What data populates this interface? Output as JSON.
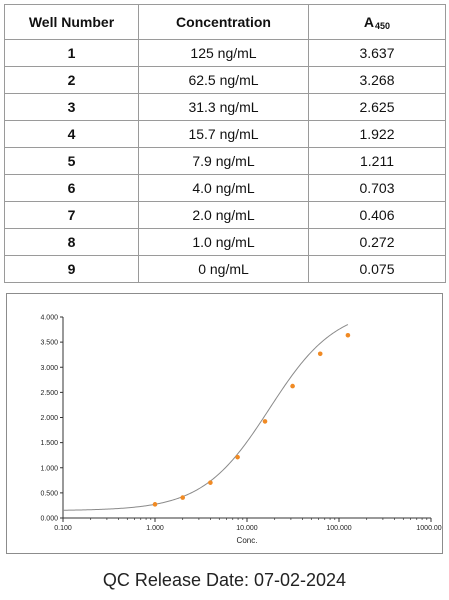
{
  "table": {
    "headers": [
      "Well Number",
      "Concentration",
      "A",
      "450"
    ],
    "rows": [
      {
        "well": "1",
        "conc": "125 ng/mL",
        "abs": "3.637"
      },
      {
        "well": "2",
        "conc": "62.5 ng/mL",
        "abs": "3.268"
      },
      {
        "well": "3",
        "conc": "31.3 ng/mL",
        "abs": "2.625"
      },
      {
        "well": "4",
        "conc": "15.7 ng/mL",
        "abs": "1.922"
      },
      {
        "well": "5",
        "conc": "7.9 ng/mL",
        "abs": "1.211"
      },
      {
        "well": "6",
        "conc": "4.0 ng/mL",
        "abs": "0.703"
      },
      {
        "well": "7",
        "conc": "2.0 ng/mL",
        "abs": "0.406"
      },
      {
        "well": "8",
        "conc": "1.0 ng/mL",
        "abs": "0.272"
      },
      {
        "well": "9",
        "conc": "0 ng/mL",
        "abs": "0.075"
      }
    ]
  },
  "chart_data": {
    "type": "scatter",
    "xlabel": "Conc.",
    "ylabel": "",
    "x_scale": "log",
    "xlim": [
      0.1,
      1000
    ],
    "ylim": [
      0,
      4
    ],
    "x_ticks": [
      "0.100",
      "1.000",
      "10.000",
      "100.000",
      "1000.000"
    ],
    "y_ticks": [
      "0.000",
      "0.500",
      "1.000",
      "1.500",
      "2.000",
      "2.500",
      "3.000",
      "3.500",
      "4.000"
    ],
    "grid": false,
    "points": {
      "x": [
        1.0,
        2.0,
        4.0,
        7.9,
        15.7,
        31.3,
        62.5,
        125
      ],
      "y": [
        0.272,
        0.406,
        0.703,
        1.211,
        1.922,
        2.625,
        3.268,
        3.637
      ]
    },
    "fit_curve": {
      "type": "4PL",
      "bottom": 0.146,
      "top": 4.2,
      "ec50": 17.5,
      "hill": 1.2
    },
    "colors": {
      "points": "#f08a24",
      "curve": "#8a8a8a",
      "axis": "#333333"
    }
  },
  "footer": {
    "qc_text": "QC Release Date: 07-02-2024"
  }
}
